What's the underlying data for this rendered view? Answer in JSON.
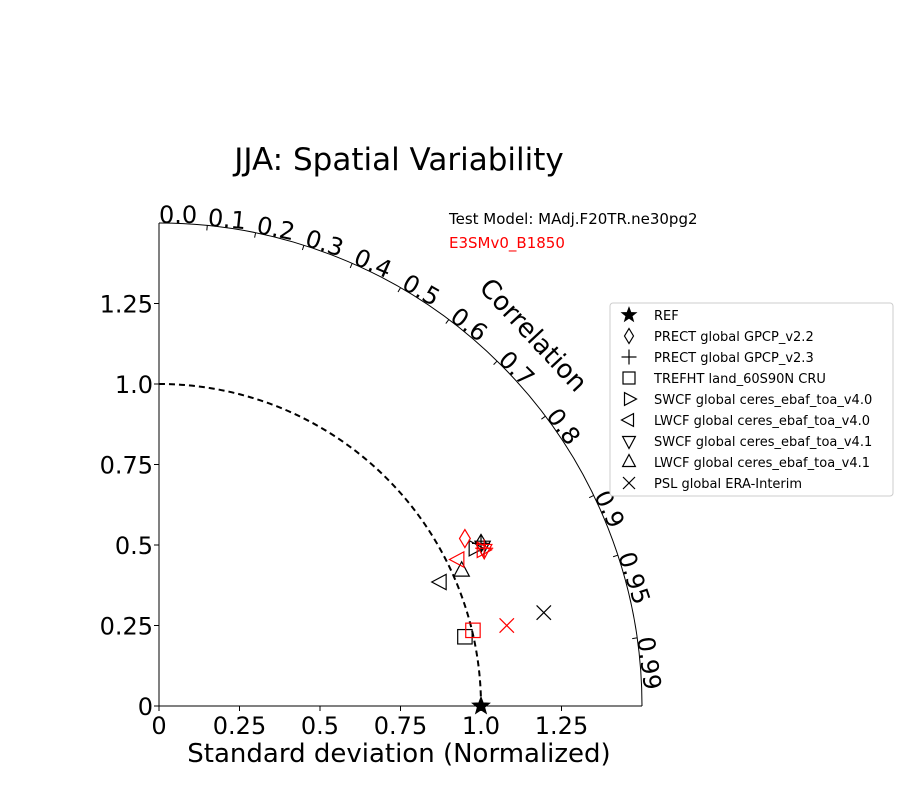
{
  "chart_data": {
    "type": "scatter",
    "subtype": "taylor-diagram",
    "title": "JJA: Spatial Variability",
    "xlabel": "Standard deviation (Normalized)",
    "correlation_label": "Correlation",
    "test_model_label": "Test Model: MAdj.F20TR.ne30pg2",
    "ref_model_label": "E3SMv0_B1850",
    "xlim": [
      0,
      1.5
    ],
    "ylim": [
      0,
      1.5
    ],
    "x_ticks": [
      {
        "v": 0,
        "label": "0"
      },
      {
        "v": 0.25,
        "label": "0.25"
      },
      {
        "v": 0.5,
        "label": "0.5"
      },
      {
        "v": 0.75,
        "label": "0.75"
      },
      {
        "v": 1.0,
        "label": "1.0"
      },
      {
        "v": 1.25,
        "label": "1.25"
      }
    ],
    "y_ticks": [
      {
        "v": 0,
        "label": "0"
      },
      {
        "v": 0.25,
        "label": "0.25"
      },
      {
        "v": 0.5,
        "label": "0.5"
      },
      {
        "v": 0.75,
        "label": "0.75"
      },
      {
        "v": 1.0,
        "label": "1.0"
      },
      {
        "v": 1.25,
        "label": "1.25"
      }
    ],
    "corr_ticks": [
      {
        "v": 0.0,
        "label": "0.0"
      },
      {
        "v": 0.1,
        "label": "0.1"
      },
      {
        "v": 0.2,
        "label": "0.2"
      },
      {
        "v": 0.3,
        "label": "0.3"
      },
      {
        "v": 0.4,
        "label": "0.4"
      },
      {
        "v": 0.5,
        "label": "0.5"
      },
      {
        "v": 0.6,
        "label": "0.6"
      },
      {
        "v": 0.7,
        "label": "0.7"
      },
      {
        "v": 0.8,
        "label": "0.8"
      },
      {
        "v": 0.9,
        "label": "0.9"
      },
      {
        "v": 0.95,
        "label": "0.95"
      },
      {
        "v": 0.99,
        "label": "0.99"
      }
    ],
    "reference_std": 1.0,
    "legend": [
      {
        "name": "REF",
        "marker": "star"
      },
      {
        "name": "PRECT global GPCP_v2.2",
        "marker": "diamond"
      },
      {
        "name": "PRECT global GPCP_v2.3",
        "marker": "plus"
      },
      {
        "name": "TREFHT land_60S90N CRU",
        "marker": "square"
      },
      {
        "name": "SWCF global ceres_ebaf_toa_v4.0",
        "marker": "triangle-right"
      },
      {
        "name": "LWCF global ceres_ebaf_toa_v4.0",
        "marker": "triangle-left"
      },
      {
        "name": "SWCF global ceres_ebaf_toa_v4.1",
        "marker": "triangle-down"
      },
      {
        "name": "LWCF global ceres_ebaf_toa_v4.1",
        "marker": "triangle-up"
      },
      {
        "name": "PSL global ERA-Interim",
        "marker": "x"
      }
    ],
    "series": [
      {
        "name": "Test Model: MAdj.F20TR.ne30pg2",
        "color": "#000000",
        "points": [
          {
            "marker": "star",
            "x": 1.0,
            "y": 0.0
          },
          {
            "marker": "diamond",
            "x": 1.0,
            "y": 0.505
          },
          {
            "marker": "plus",
            "x": 1.0,
            "y": 0.505
          },
          {
            "marker": "square",
            "x": 0.95,
            "y": 0.215
          },
          {
            "marker": "triangle-right",
            "x": 0.98,
            "y": 0.49
          },
          {
            "marker": "triangle-left",
            "x": 0.875,
            "y": 0.385
          },
          {
            "marker": "triangle-down",
            "x": 1.005,
            "y": 0.495
          },
          {
            "marker": "triangle-up",
            "x": 0.94,
            "y": 0.42
          },
          {
            "marker": "x",
            "x": 1.195,
            "y": 0.29
          }
        ]
      },
      {
        "name": "E3SMv0_B1850",
        "color": "#ff0000",
        "points": [
          {
            "marker": "diamond",
            "x": 0.95,
            "y": 0.52
          },
          {
            "marker": "plus",
            "x": 1.01,
            "y": 0.49
          },
          {
            "marker": "square",
            "x": 0.975,
            "y": 0.235
          },
          {
            "marker": "triangle-right",
            "x": 1.005,
            "y": 0.485
          },
          {
            "marker": "triangle-left",
            "x": 0.93,
            "y": 0.455
          },
          {
            "marker": "triangle-down",
            "x": 1.01,
            "y": 0.485
          },
          {
            "marker": "x",
            "x": 1.08,
            "y": 0.25
          }
        ]
      }
    ]
  }
}
